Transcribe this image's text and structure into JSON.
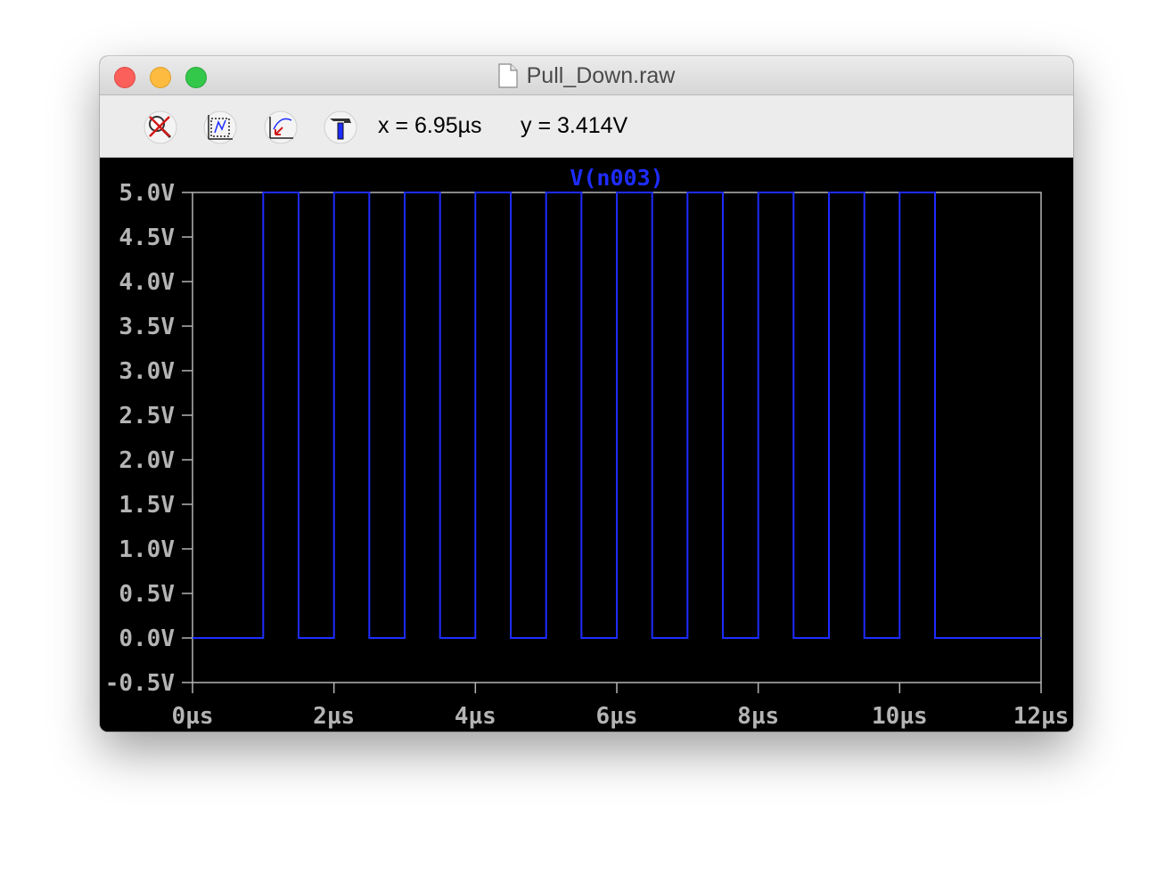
{
  "window": {
    "title": "Pull_Down.raw",
    "title_icon": "document-icon"
  },
  "toolbar": {
    "tools": [
      {
        "name": "zoom-cancel-icon",
        "label": "Zoom cancel"
      },
      {
        "name": "autorange-icon",
        "label": "Autorange"
      },
      {
        "name": "pan-icon",
        "label": "Pan"
      },
      {
        "name": "hammer-icon",
        "label": "Tools"
      }
    ],
    "x_readout": "x = 6.95µs",
    "y_readout": "y = 3.414V"
  },
  "colors": {
    "plot_background": "#000000",
    "axis": "#b4b4b4",
    "trace": "#1e2cff"
  },
  "chart_data": {
    "type": "line",
    "title": "V(n003)",
    "xlabel": "",
    "ylabel": "",
    "xlim": [
      0,
      12
    ],
    "ylim": [
      -0.5,
      5.0
    ],
    "x_unit": "µs",
    "y_unit": "V",
    "x_ticks": [
      0,
      2,
      4,
      6,
      8,
      10,
      12
    ],
    "x_tick_labels": [
      "0µs",
      "2µs",
      "4µs",
      "6µs",
      "8µs",
      "10µs",
      "12µs"
    ],
    "y_ticks": [
      5.0,
      4.5,
      4.0,
      3.5,
      3.0,
      2.5,
      2.0,
      1.5,
      1.0,
      0.5,
      0.0,
      -0.5
    ],
    "y_tick_labels": [
      "5.0V",
      "4.5V",
      "4.0V",
      "3.5V",
      "3.0V",
      "2.5V",
      "2.0V",
      "1.5V",
      "1.0V",
      "0.5V",
      "0.0V",
      "-0.5V"
    ],
    "grid": false,
    "series": [
      {
        "name": "V(n003)",
        "x": [
          0,
          1,
          1,
          1.5,
          1.5,
          2,
          2,
          2.5,
          2.5,
          3,
          3,
          3.5,
          3.5,
          4,
          4,
          4.5,
          4.5,
          5,
          5,
          5.5,
          5.5,
          6,
          6,
          6.5,
          6.5,
          7,
          7,
          7.5,
          7.5,
          8,
          8,
          8.5,
          8.5,
          9,
          9,
          9.5,
          9.5,
          10,
          10,
          10.5,
          10.5,
          12
        ],
        "y": [
          0,
          0,
          5,
          5,
          0,
          0,
          5,
          5,
          0,
          0,
          5,
          5,
          0,
          0,
          5,
          5,
          0,
          0,
          5,
          5,
          0,
          0,
          5,
          5,
          0,
          0,
          5,
          5,
          0,
          0,
          5,
          5,
          0,
          0,
          5,
          5,
          0,
          0,
          5,
          5,
          0,
          0
        ]
      }
    ]
  }
}
